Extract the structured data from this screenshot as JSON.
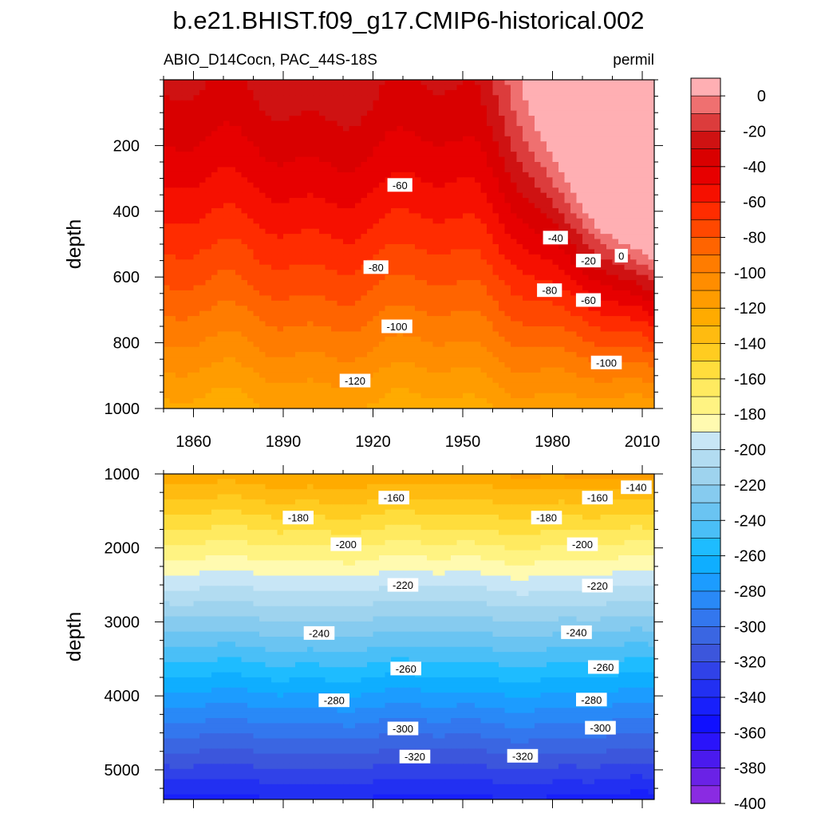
{
  "chart_data": {
    "type": "contour",
    "title": "b.e21.BHIST.f09_g17.CMIP6-historical.002",
    "subtitle_left": "ABIO_D14Cocn, PAC_44S-18S",
    "subtitle_right": "permil",
    "xlabel": "",
    "ylabel": "depth",
    "xlim": [
      1850,
      2014
    ],
    "xticks": [
      1860,
      1890,
      1920,
      1950,
      1980,
      2010
    ],
    "panels": [
      {
        "name": "upper",
        "ylim": [
          0,
          1000
        ],
        "yticks": [
          200,
          400,
          600,
          800,
          1000
        ],
        "ylabel": "depth",
        "contour_labels": [
          {
            "value": "-60",
            "year": 1929,
            "depth": 320
          },
          {
            "value": "-80",
            "year": 1921,
            "depth": 570
          },
          {
            "value": "-100",
            "year": 1928,
            "depth": 750
          },
          {
            "value": "-120",
            "year": 1914,
            "depth": 915
          },
          {
            "value": "-40",
            "year": 1981,
            "depth": 480
          },
          {
            "value": "-20",
            "year": 1992,
            "depth": 550
          },
          {
            "value": "0",
            "year": 2003,
            "depth": 535
          },
          {
            "value": "-80",
            "year": 1979,
            "depth": 640
          },
          {
            "value": "-60",
            "year": 1992,
            "depth": 670
          },
          {
            "value": "-100",
            "year": 1998,
            "depth": 860
          }
        ]
      },
      {
        "name": "lower",
        "ylim": [
          1000,
          5400
        ],
        "yticks": [
          1000,
          2000,
          3000,
          4000,
          5000
        ],
        "ylabel": "depth",
        "contour_labels": [
          {
            "value": "-140",
            "year": 2008,
            "depth": 1180
          },
          {
            "value": "-160",
            "year": 1927,
            "depth": 1320
          },
          {
            "value": "-160",
            "year": 1995,
            "depth": 1320
          },
          {
            "value": "-180",
            "year": 1895,
            "depth": 1590
          },
          {
            "value": "-180",
            "year": 1978,
            "depth": 1590
          },
          {
            "value": "-200",
            "year": 1911,
            "depth": 1950
          },
          {
            "value": "-200",
            "year": 1990,
            "depth": 1950
          },
          {
            "value": "-220",
            "year": 1930,
            "depth": 2500
          },
          {
            "value": "-220",
            "year": 1995,
            "depth": 2510
          },
          {
            "value": "-240",
            "year": 1902,
            "depth": 3150
          },
          {
            "value": "-240",
            "year": 1988,
            "depth": 3140
          },
          {
            "value": "-260",
            "year": 1931,
            "depth": 3630
          },
          {
            "value": "-260",
            "year": 1997,
            "depth": 3610
          },
          {
            "value": "-280",
            "year": 1907,
            "depth": 4060
          },
          {
            "value": "-280",
            "year": 1993,
            "depth": 4050
          },
          {
            "value": "-300",
            "year": 1930,
            "depth": 4440
          },
          {
            "value": "-300",
            "year": 1996,
            "depth": 4430
          },
          {
            "value": "-320",
            "year": 1934,
            "depth": 4820
          },
          {
            "value": "-320",
            "year": 1970,
            "depth": 4810
          }
        ]
      }
    ],
    "colorbar": {
      "labels": [
        "0",
        "-20",
        "-40",
        "-60",
        "-80",
        "-100",
        "-120",
        "-140",
        "-160",
        "-180",
        "-200",
        "-220",
        "-240",
        "-260",
        "-280",
        "-300",
        "-320",
        "-340",
        "-360",
        "-380",
        "-400"
      ],
      "colors": [
        "#ffafb3",
        "#ef7070",
        "#dc3c3c",
        "#cf1212",
        "#d90000",
        "#e70000",
        "#f61000",
        "#ff2c00",
        "#ff4800",
        "#ff6400",
        "#ff7c00",
        "#ff8d00",
        "#ff9c00",
        "#ffab00",
        "#ffbb10",
        "#ffcc20",
        "#ffdd3c",
        "#ffea60",
        "#fff382",
        "#fffab0",
        "#c8e6f6",
        "#b2dcf1",
        "#9ed3ee",
        "#86cbef",
        "#6ac4f2",
        "#4abff7",
        "#1ebcff",
        "#0faeff",
        "#1c9cff",
        "#2989f7",
        "#3377ee",
        "#3a66e2",
        "#3c56dc",
        "#3042e8",
        "#2230f2",
        "#1820fb",
        "#1010ff",
        "#2a14fa",
        "#4a1aee",
        "#6a22e6",
        "#8a2be2"
      ]
    }
  }
}
